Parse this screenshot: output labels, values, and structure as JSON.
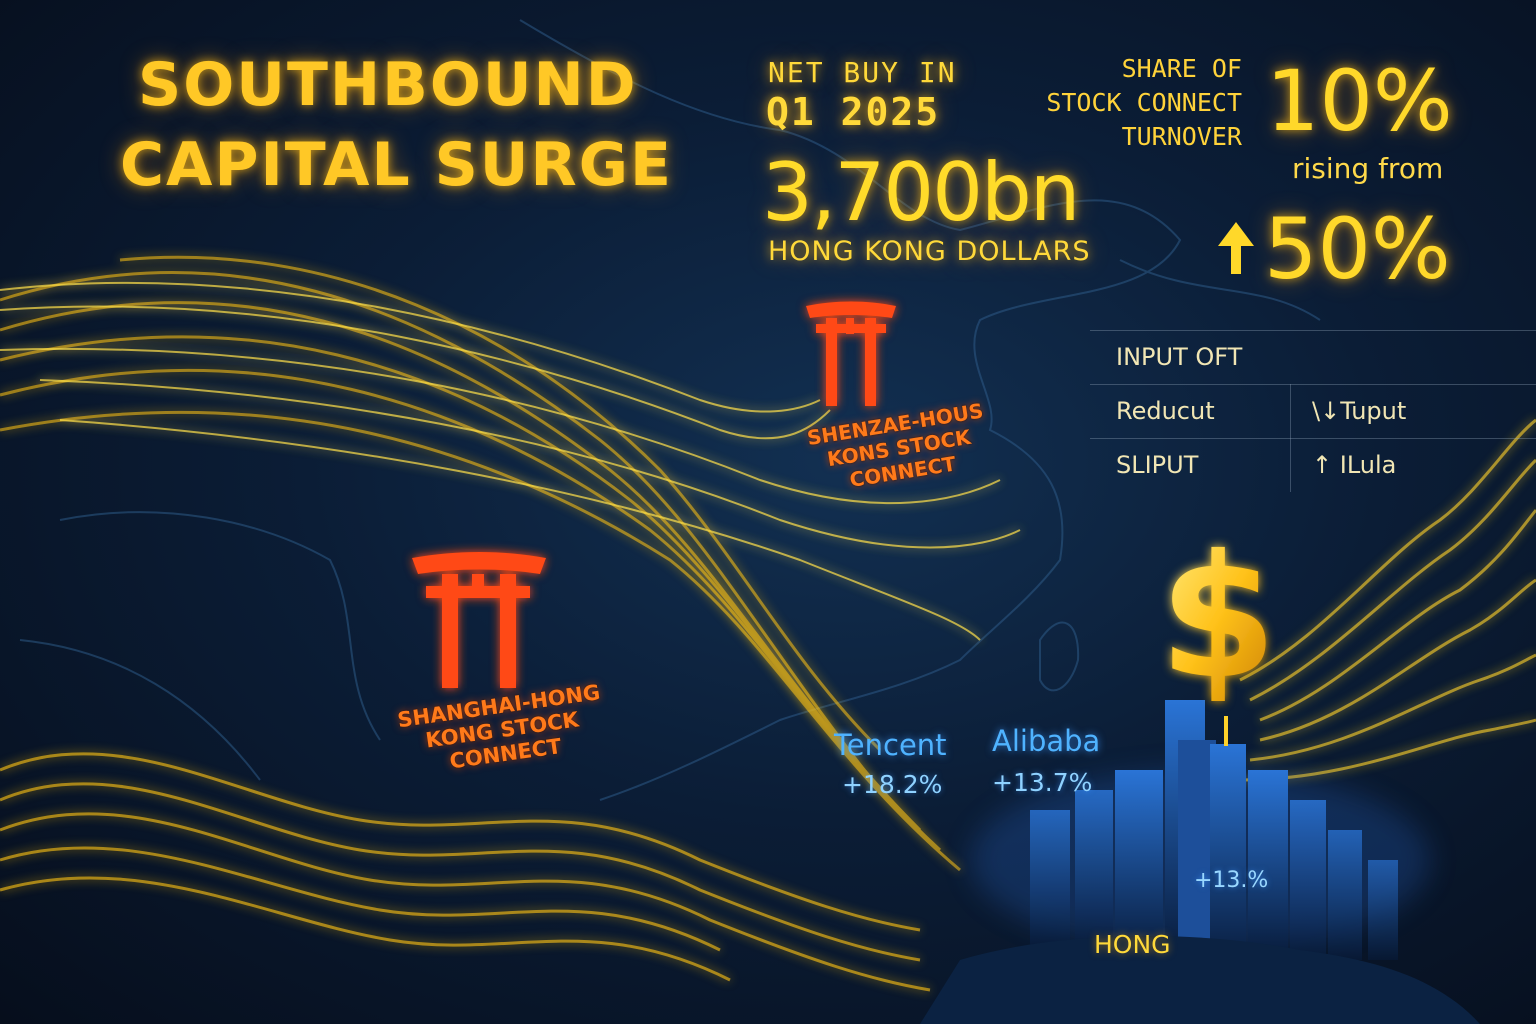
{
  "title": {
    "line1": "SOUTHBOUND",
    "line2": "CAPITAL SURGE"
  },
  "net_buy": {
    "label": "NET BUY IN",
    "period": "Q1 2025",
    "value": "3,700bn",
    "unit": "HONG KONG DOLLARS"
  },
  "share": {
    "line1": "SHARE OF",
    "line2": "STOCK CONNECT",
    "line3": "TURNOVER",
    "value": "10%",
    "rising_from": "rising from",
    "rise_value": "50%",
    "arrow_icon": "up-arrow-icon"
  },
  "flow_table": {
    "header": "INPUT OFT",
    "rows": [
      {
        "label": "Reducut",
        "value": "\\↓Tuput"
      },
      {
        "label": "SLIPUT",
        "value": "↑ ILula"
      }
    ]
  },
  "connects": {
    "shenzhen": [
      "SHENZAE-HOUS",
      "KONS STOCK",
      "CONNECT"
    ],
    "shanghai": [
      "SHANGHAI-HONG",
      "KONG STOCK",
      "CONNECT"
    ]
  },
  "stocks": [
    {
      "name": "Tencent",
      "change": "+18.2%"
    },
    {
      "name": "Alibaba",
      "change": "+13.7%"
    }
  ],
  "city": {
    "change": "+13.%",
    "label": "HONG"
  },
  "icons": {
    "gate": "torii-gate-icon",
    "currency": "dollar-icon"
  },
  "colors": {
    "gold": "#ffd21f",
    "gate_red": "#ff4a12",
    "stock_blue": "#4fb3ff",
    "background": "#0b1d36"
  }
}
